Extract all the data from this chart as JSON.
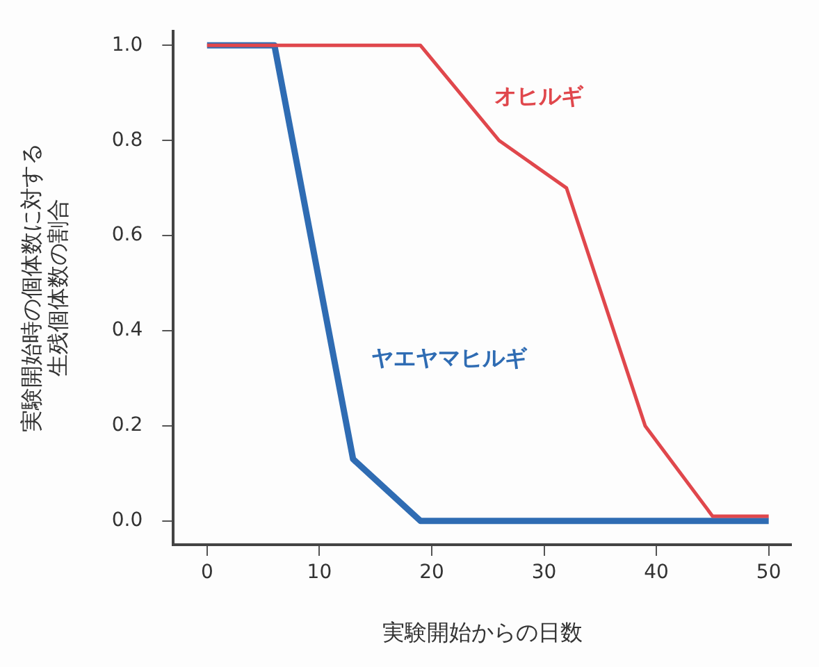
{
  "chart_data": {
    "type": "line",
    "xlabel": "実験開始からの日数",
    "ylabel": "実験開始時の個体数に対する生残個体数の割合",
    "series": [
      {
        "name": "オヒルギ",
        "color": "#e0474c",
        "x": [
          0,
          19,
          26,
          32,
          39,
          45,
          50
        ],
        "values": [
          1.0,
          1.0,
          0.8,
          0.7,
          0.2,
          0.01,
          0.01
        ]
      },
      {
        "name": "ヤエヤマヒルギ",
        "color": "#2f6cb3",
        "x": [
          0,
          6,
          13,
          19,
          50
        ],
        "values": [
          1.0,
          1.0,
          0.13,
          0,
          0
        ]
      }
    ],
    "xlim": [
      -3,
      52
    ],
    "xticks": [
      0,
      10,
      20,
      30,
      40,
      50
    ],
    "ylim": [
      -0.05,
      1.03
    ],
    "yticks": [
      {
        "value": 0,
        "label": "0.0"
      },
      0.2,
      0.4,
      0.6,
      0.8,
      {
        "value": 1,
        "label": "1.0"
      }
    ],
    "grid": false,
    "legend": false,
    "marker": "none",
    "line_style": "solid"
  }
}
